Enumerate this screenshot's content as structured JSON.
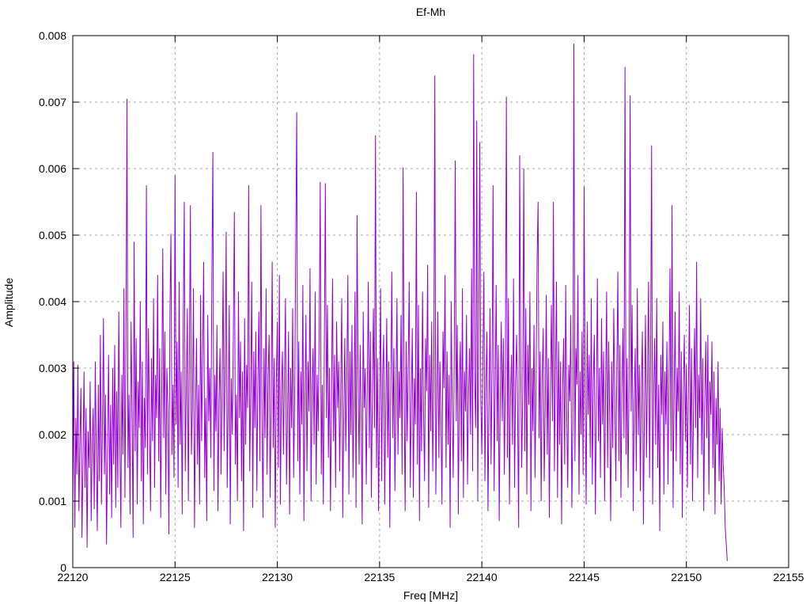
{
  "chart_data": {
    "type": "line",
    "title": "Ef-Mh",
    "xlabel": "Freq [MHz]",
    "ylabel": "Amplitude",
    "xlim": [
      22120,
      22155
    ],
    "ylim": [
      0,
      0.008
    ],
    "grid": true,
    "legend_position": "none",
    "x_ticks": [
      {
        "value": 22120,
        "label": "22120"
      },
      {
        "value": 22125,
        "label": "22125"
      },
      {
        "value": 22130,
        "label": "22130"
      },
      {
        "value": 22135,
        "label": "22135"
      },
      {
        "value": 22140,
        "label": "22140"
      },
      {
        "value": 22145,
        "label": "22145"
      },
      {
        "value": 22150,
        "label": "22150"
      },
      {
        "value": 22155,
        "label": "22155"
      }
    ],
    "y_ticks": [
      {
        "value": 0.0,
        "label": "0"
      },
      {
        "value": 0.001,
        "label": "0.001"
      },
      {
        "value": 0.002,
        "label": "0.002"
      },
      {
        "value": 0.003,
        "label": "0.003"
      },
      {
        "value": 0.004,
        "label": "0.004"
      },
      {
        "value": 0.005,
        "label": "0.005"
      },
      {
        "value": 0.006,
        "label": "0.006"
      },
      {
        "value": 0.007,
        "label": "0.007"
      },
      {
        "value": 0.008,
        "label": "0.008"
      }
    ],
    "colors": {
      "line": "#9400d3",
      "grid": "#a8a8a8",
      "axis": "#000000",
      "background": "#ffffff"
    },
    "series": [
      {
        "name": "Ef-Mh",
        "color": "#9400d3",
        "x_start": 22120.0,
        "x_step": 0.05,
        "amplitude_scale": 1e-05,
        "values": [
          95,
          310,
          60,
          225,
          140,
          305,
          85,
          190,
          270,
          45,
          160,
          295,
          120,
          240,
          30,
          205,
          150,
          280,
          70,
          185,
          240,
          88,
          310,
          165,
          55,
          275,
          130,
          350,
          95,
          215,
          375,
          140,
          260,
          35,
          180,
          320,
          110,
          245,
          75,
          300,
          155,
          335,
          90,
          265,
          120,
          385,
          200,
          60,
          290,
          170,
          420,
          105,
          330,
          705,
          150,
          260,
          80,
          370,
          230,
          45,
          490,
          175,
          345,
          95,
          280,
          210,
          400,
          130,
          310,
          65,
          255,
          180,
          575,
          140,
          360,
          230,
          85,
          315,
          190,
          405,
          120,
          290,
          225,
          440,
          160,
          330,
          75,
          265,
          480,
          195,
          355,
          110,
          300,
          240,
          50,
          385,
          502,
          170,
          275,
          135,
          590,
          215,
          340,
          120,
          430,
          185,
          295,
          80,
          360,
          550,
          145,
          265,
          390,
          100,
          310,
          545,
          170,
          240,
          420,
          60,
          230,
          345,
          155,
          275,
          95,
          410,
          190,
          320,
          460,
          135,
          255,
          70,
          380,
          220,
          300,
          165,
          435,
          625,
          115,
          290,
          205,
          365,
          85,
          250,
          330,
          140,
          270,
          445,
          175,
          310,
          505,
          120,
          235,
          395,
          65,
          285,
          200,
          350,
          535,
          155,
          260,
          100,
          415,
          225,
          340,
          130,
          295,
          55,
          375,
          185,
          305,
          240,
          575,
          145,
          265,
          430,
          90,
          325,
          210,
          355,
          115,
          280,
          385,
          160,
          545,
          235,
          75,
          330,
          195,
          420,
          140,
          290,
          350,
          105,
          255,
          460,
          180,
          315,
          60,
          275,
          370,
          150,
          440,
          95,
          265,
          325,
          170,
          285,
          405,
          125,
          230,
          355,
          80,
          300,
          210,
          390,
          135,
          260,
          475,
          685,
          160,
          340,
          110,
          295,
          215,
          425,
          70,
          250,
          380,
          145,
          310,
          235,
          450,
          100,
          270,
          330,
          185,
          415,
          125,
          290,
          205,
          360,
          580,
          140,
          275,
          95,
          335,
          578,
          225,
          395,
          165,
          300,
          85,
          255,
          435,
          190,
          320,
          120,
          370,
          240,
          310,
          145,
          265,
          405,
          75,
          230,
          345,
          175,
          290,
          440,
          110,
          325,
          200,
          365,
          135,
          250,
          415,
          90,
          530,
          280,
          155,
          335,
          220,
          65,
          385,
          240,
          300,
          125,
          270,
          430,
          180,
          355,
          105,
          265,
          390,
          210,
          650,
          150,
          315,
          85,
          245,
          420,
          130,
          290,
          350,
          95,
          235,
          375,
          165,
          310,
          60,
          275,
          445,
          195,
          330,
          115,
          255,
          405,
          170,
          295,
          225,
          380,
          140,
          602,
          265,
          85,
          340,
          190,
          310,
          430,
          120,
          250,
          360,
          105,
          285,
          215,
          565,
          155,
          395,
          70,
          300,
          175,
          415,
          235,
          130,
          345,
          265,
          455,
          90,
          320,
          205,
          370,
          145,
          280,
          740,
          110,
          250,
          385,
          165,
          310,
          230,
          95,
          355,
          270,
          440,
          150,
          325,
          185,
          290,
          60,
          400,
          245,
          135,
          315,
          612,
          220,
          365,
          80,
          275,
          340,
          160,
          420,
          105,
          295,
          235,
          380,
          125,
          260,
          330,
          200,
          450,
          145,
          772,
          285,
          210,
          672,
          100,
          360,
          640,
          255,
          170,
          310,
          445,
          130,
          275,
          355,
          85,
          240,
          390,
          155,
          300,
          575,
          115,
          265,
          425,
          190,
          335,
          70,
          250,
          370,
          220,
          345,
          140,
          290,
          708,
          165,
          405,
          95,
          255,
          320,
          185,
          435,
          120,
          280,
          350,
          230,
          60,
          620,
          305,
          150,
          265,
          600,
          175,
          390,
          110,
          335,
          245,
          415,
          85,
          300,
          205,
          365,
          135,
          275,
          460,
          550,
          195,
          325,
          100,
          285,
          360,
          130,
          240,
          410,
          170,
          315,
          75,
          255,
          395,
          220,
          550,
          145,
          290,
          430,
          105,
          340,
          185,
          310,
          65,
          270,
          345,
          155,
          425,
          235,
          120,
          305,
          250,
          380,
          90,
          215,
          788,
          160,
          330,
          275,
          440,
          110,
          295,
          200,
          355,
          140,
          573,
          260,
          95,
          370,
          230,
          320,
          165,
          405,
          125,
          280,
          350,
          80,
          245,
          435,
          190,
          300,
          135,
          375,
          215,
          325,
          100,
          265,
          415,
          150,
          340,
          225,
          70,
          310,
          180,
          390,
          255,
          130,
          295,
          445,
          160,
          335,
          105,
          270,
          360,
          195,
          753,
          170,
          315,
          120,
          285,
          710,
          235,
          395,
          85,
          250,
          330,
          145,
          420,
          200,
          305,
          115,
          275,
          355,
          65,
          240,
          380,
          165,
          290,
          430,
          135,
          310,
          635,
          95,
          260,
          345,
          185,
          405,
          150,
          275,
          55,
          320,
          230,
          370,
          110,
          295,
          215,
          340,
          125,
          280,
          450,
          175,
          545,
          90,
          255,
          385,
          160,
          300,
          235,
          415,
          140,
          325,
          75,
          265,
          350,
          190,
          305,
          120,
          270,
          395,
          155,
          330,
          100,
          245,
          360,
          210,
          460,
          135,
          290,
          225,
          405,
          170,
          315,
          85,
          250,
          340,
          195,
          350,
          110,
          280,
          230,
          340,
          150,
          295,
          80,
          255,
          185,
          310,
          130,
          240,
          95,
          210,
          155,
          120,
          60,
          35,
          10
        ]
      }
    ]
  },
  "plot_geometry_note": "data ends at 22152.0 MHz"
}
